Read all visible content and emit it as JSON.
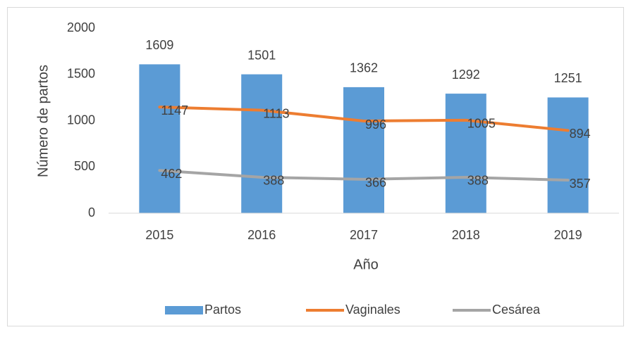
{
  "chart_data": {
    "type": "bar",
    "x_label": "Año",
    "y_label": "Número de partos",
    "categories": [
      "2015",
      "2016",
      "2017",
      "2018",
      "2019"
    ],
    "series": [
      {
        "name": "Partos",
        "type": "bar",
        "color": "#5b9bd5",
        "values": [
          1609,
          1501,
          1362,
          1292,
          1251
        ]
      },
      {
        "name": "Vaginales",
        "type": "line",
        "color": "#ed7d31",
        "values": [
          1147,
          1113,
          996,
          1005,
          894
        ]
      },
      {
        "name": "Cesárea",
        "type": "line",
        "color": "#a5a5a5",
        "values": [
          462,
          388,
          366,
          388,
          357
        ]
      }
    ],
    "ylim": [
      0,
      2000
    ],
    "yticks": [
      0,
      500,
      1000,
      1500,
      2000
    ],
    "grid": false,
    "legend": "bottom"
  }
}
